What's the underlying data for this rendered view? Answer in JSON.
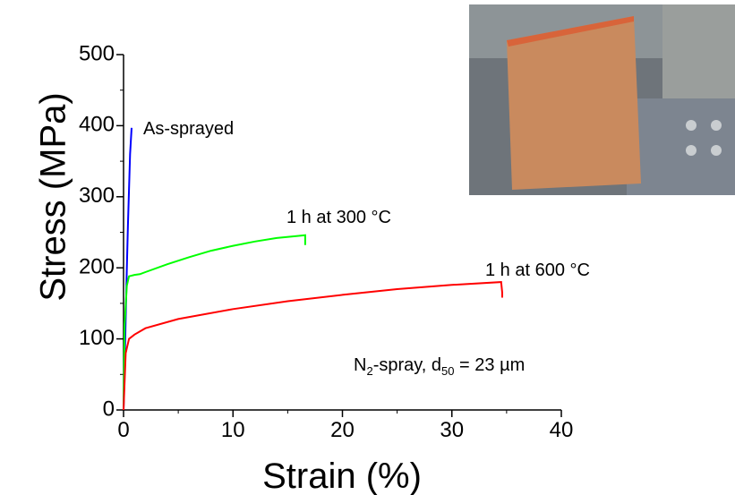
{
  "chart_data": {
    "type": "line",
    "xlabel": "Strain (%)",
    "ylabel": "Stress (MPa)",
    "xlim": [
      0,
      40
    ],
    "ylim": [
      0,
      500
    ],
    "xticks": [
      0,
      10,
      20,
      30,
      40
    ],
    "yticks": [
      0,
      100,
      200,
      300,
      400,
      500
    ],
    "xminorticks": [
      5,
      15,
      25,
      35
    ],
    "yminorticks": [
      50,
      150,
      250,
      350,
      450
    ],
    "annotation": [
      "N",
      "2",
      "-spray, d",
      "50",
      " = 23 µm"
    ],
    "series": [
      {
        "name": "As-sprayed",
        "color": "#0000ff",
        "x": [
          0,
          0.1,
          0.2,
          0.3,
          0.4,
          0.5,
          0.6,
          0.74
        ],
        "values": [
          0,
          60,
          130,
          200,
          260,
          310,
          360,
          397
        ]
      },
      {
        "name": "1 h at 300 °C",
        "color": "#00ff00",
        "x": [
          0,
          0.1,
          0.3,
          0.5,
          1,
          1.5,
          2,
          4,
          6,
          8,
          10,
          12,
          14,
          16,
          16.6,
          16.6
        ],
        "values": [
          0,
          120,
          175,
          188,
          190,
          191,
          194,
          205,
          215,
          224,
          231,
          237,
          242,
          245,
          246,
          232
        ]
      },
      {
        "name": "1 h at 600 °C",
        "color": "#ff0000",
        "x": [
          0,
          0.2,
          0.5,
          1,
          2,
          5,
          10,
          15,
          20,
          25,
          30,
          34.5,
          34.6,
          34.6
        ],
        "values": [
          0,
          80,
          100,
          106,
          115,
          128,
          142,
          153,
          162,
          170,
          176,
          180,
          165,
          158
        ]
      }
    ]
  }
}
